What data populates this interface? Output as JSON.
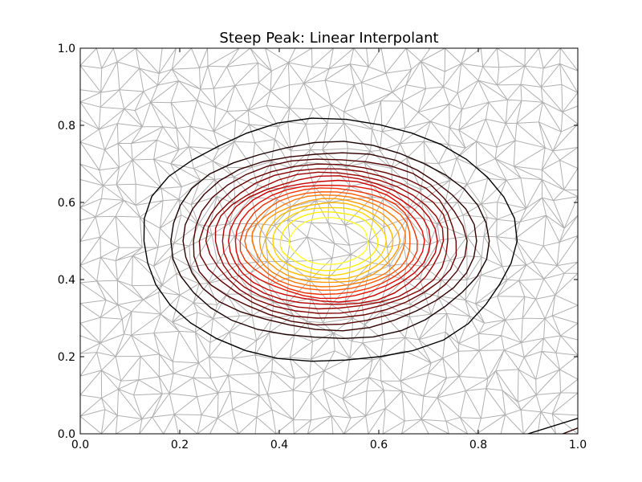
{
  "chart_data": {
    "type": "contour",
    "title": "Steep Peak: Linear Interpolant",
    "xlabel": "",
    "ylabel": "",
    "xlim": [
      0.0,
      1.0
    ],
    "ylim": [
      0.0,
      1.0
    ],
    "x_ticks": [
      "0.0",
      "0.2",
      "0.4",
      "0.6",
      "0.8",
      "1.0"
    ],
    "y_ticks": [
      "0.0",
      "0.2",
      "0.4",
      "0.6",
      "0.8",
      "1.0"
    ],
    "grid": false,
    "legend": "none",
    "mesh": {
      "kind": "triangulation",
      "color": "#b0b0b0"
    },
    "peak_center": [
      0.5,
      0.5
    ],
    "contours": [
      {
        "level": 1,
        "rx": 0.375,
        "ry": 0.315,
        "color": "#000000"
      },
      {
        "level": 2,
        "rx": 0.32,
        "ry": 0.255,
        "color": "#1a0000"
      },
      {
        "level": 3,
        "rx": 0.295,
        "ry": 0.23,
        "color": "#330000"
      },
      {
        "level": 4,
        "rx": 0.275,
        "ry": 0.215,
        "color": "#4d0000"
      },
      {
        "level": 5,
        "rx": 0.258,
        "ry": 0.2,
        "color": "#660000"
      },
      {
        "level": 6,
        "rx": 0.243,
        "ry": 0.188,
        "color": "#800000"
      },
      {
        "level": 7,
        "rx": 0.229,
        "ry": 0.177,
        "color": "#990000"
      },
      {
        "level": 8,
        "rx": 0.216,
        "ry": 0.167,
        "color": "#b30000"
      },
      {
        "level": 9,
        "rx": 0.203,
        "ry": 0.157,
        "color": "#cc0000"
      },
      {
        "level": 10,
        "rx": 0.19,
        "ry": 0.147,
        "color": "#e00d00"
      },
      {
        "level": 11,
        "rx": 0.178,
        "ry": 0.138,
        "color": "#f03000"
      },
      {
        "level": 12,
        "rx": 0.166,
        "ry": 0.128,
        "color": "#ff5500"
      },
      {
        "level": 13,
        "rx": 0.154,
        "ry": 0.119,
        "color": "#ff7700"
      },
      {
        "level": 14,
        "rx": 0.141,
        "ry": 0.109,
        "color": "#ff9900"
      },
      {
        "level": 15,
        "rx": 0.128,
        "ry": 0.099,
        "color": "#ffb800"
      },
      {
        "level": 16,
        "rx": 0.114,
        "ry": 0.088,
        "color": "#ffd400"
      },
      {
        "level": 17,
        "rx": 0.098,
        "ry": 0.076,
        "color": "#ffee00"
      },
      {
        "level": 18,
        "rx": 0.079,
        "ry": 0.061,
        "color": "#ffff30"
      }
    ],
    "corner_contours": [
      {
        "from": [
          0.9,
          0.0
        ],
        "to": [
          1.0,
          0.04
        ],
        "color": "#000000"
      },
      {
        "from": [
          0.97,
          0.0
        ],
        "to": [
          1.0,
          0.015
        ],
        "color": "#330000"
      }
    ]
  }
}
